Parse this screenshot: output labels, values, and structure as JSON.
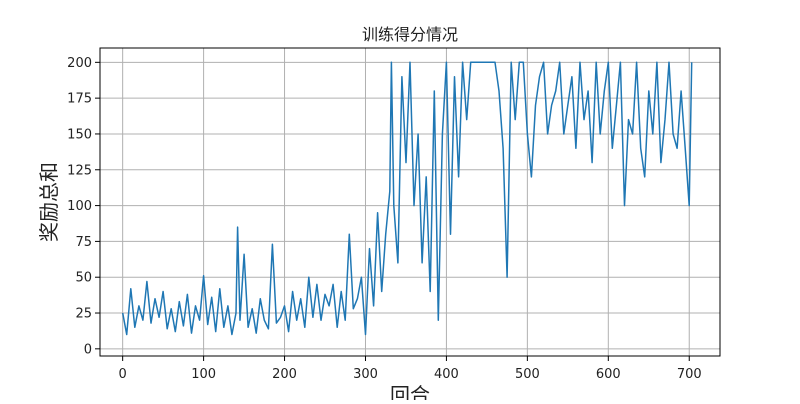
{
  "chart_data": {
    "type": "line",
    "title": "训练得分情况",
    "xlabel": "回合",
    "ylabel": "奖励总和",
    "xlim": [
      -28,
      738
    ],
    "ylim": [
      -5,
      210
    ],
    "xticks": [
      0,
      100,
      200,
      300,
      400,
      500,
      600,
      700
    ],
    "yticks": [
      0,
      25,
      50,
      75,
      100,
      125,
      150,
      175,
      200
    ],
    "grid": true,
    "line_color": "#1f77b4",
    "series": [
      {
        "x": [
          0,
          5,
          10,
          15,
          20,
          25,
          30,
          35,
          40,
          45,
          50,
          55,
          60,
          65,
          70,
          75,
          80,
          85,
          90,
          95,
          100,
          105,
          110,
          115,
          120,
          125,
          130,
          135,
          140,
          142,
          145,
          150,
          155,
          160,
          165,
          170,
          175,
          180,
          185,
          190,
          195,
          200,
          205,
          210,
          215,
          220,
          225,
          230,
          235,
          240,
          245,
          250,
          255,
          260,
          265,
          270,
          275,
          280,
          285,
          290,
          295,
          300,
          305,
          310,
          315,
          320,
          325,
          330,
          332,
          335,
          340,
          345,
          350,
          355,
          360,
          365,
          370,
          375,
          380,
          385,
          390,
          395,
          400,
          405,
          410,
          415,
          420,
          425,
          430,
          435,
          440,
          445,
          450,
          455,
          460,
          465,
          470,
          475,
          480,
          485,
          490,
          495,
          500,
          505,
          510,
          515,
          520,
          525,
          530,
          535,
          540,
          545,
          550,
          555,
          560,
          565,
          570,
          575,
          580,
          585,
          590,
          595,
          600,
          605,
          610,
          615,
          620,
          625,
          630,
          635,
          640,
          645,
          650,
          655,
          660,
          665,
          670,
          675,
          680,
          685,
          690,
          695,
          700,
          703
        ],
        "values": [
          25,
          10,
          42,
          15,
          30,
          20,
          47,
          18,
          35,
          22,
          40,
          14,
          28,
          12,
          33,
          16,
          38,
          11,
          30,
          20,
          51,
          17,
          36,
          12,
          42,
          15,
          30,
          10,
          25,
          85,
          20,
          66,
          15,
          28,
          11,
          35,
          20,
          14,
          73,
          18,
          22,
          30,
          12,
          40,
          20,
          35,
          15,
          50,
          22,
          45,
          20,
          38,
          30,
          45,
          15,
          40,
          20,
          80,
          28,
          35,
          50,
          10,
          70,
          30,
          95,
          40,
          80,
          110,
          200,
          100,
          60,
          190,
          130,
          200,
          100,
          150,
          60,
          120,
          40,
          180,
          20,
          150,
          200,
          80,
          190,
          120,
          200,
          160,
          200,
          200,
          200,
          200,
          200,
          200,
          200,
          180,
          140,
          50,
          200,
          160,
          200,
          200,
          150,
          120,
          170,
          190,
          200,
          150,
          170,
          180,
          200,
          150,
          170,
          190,
          140,
          200,
          160,
          180,
          130,
          200,
          150,
          180,
          200,
          140,
          170,
          200,
          100,
          160,
          150,
          200,
          140,
          120,
          180,
          150,
          200,
          130,
          160,
          200,
          150,
          140,
          180,
          140,
          100,
          200
        ]
      }
    ]
  }
}
